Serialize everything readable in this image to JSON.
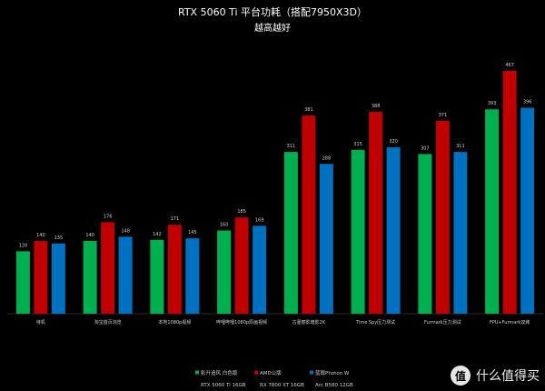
{
  "watermark": {
    "badge": "值",
    "text": "什么值得买"
  },
  "chart_data": {
    "type": "bar",
    "title": "RTX 5060 Ti 平台功耗（搭配7950X3D）",
    "subtitle": "越高越好",
    "categories": [
      "待机",
      "淘宝首页浏览",
      "本地1080p视频",
      "哔哩哔哩1080p原画视频",
      "古墓丽影暗影2K",
      "Time Spy压力测试",
      "Furmark压力测试",
      "FPU+Furmark双烤"
    ],
    "series": [
      {
        "name": "影升追风 白色版",
        "sub": "RTX 5060 Ti 16GB",
        "color": "#00b050",
        "values": [
          120,
          140,
          142,
          160,
          311,
          315,
          307,
          393
        ]
      },
      {
        "name": "AMD公版",
        "sub": "RX 7800 XT 16GB",
        "color": "#c00000",
        "values": [
          140,
          176,
          171,
          185,
          381,
          388,
          371,
          467
        ]
      },
      {
        "name": "蓝戟Photon W",
        "sub": "Arc B580 12GB",
        "color": "#0070c0",
        "values": [
          135,
          148,
          145,
          169,
          288,
          320,
          311,
          396
        ]
      }
    ],
    "ylim": [
      0,
      500
    ],
    "grid": false,
    "legend": "bottom"
  }
}
